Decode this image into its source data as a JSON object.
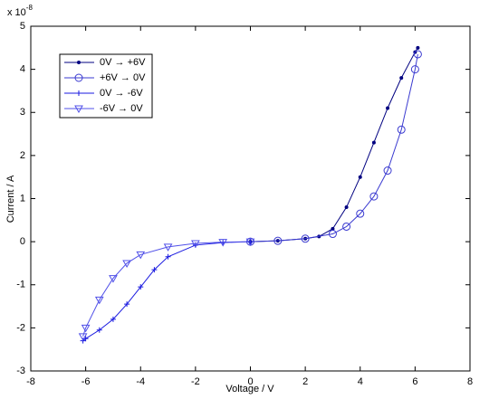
{
  "chart_data": {
    "type": "line",
    "xlabel": "Voltage / V",
    "ylabel": "Current / A",
    "y_multiplier": {
      "text": "x 10",
      "exponent": "-8"
    },
    "xlim": [
      -8,
      8
    ],
    "xticks": [
      -8,
      -6,
      -4,
      -2,
      0,
      2,
      4,
      6,
      8
    ],
    "ylim": [
      -3,
      5
    ],
    "yticks": [
      -3,
      -2,
      -1,
      0,
      1,
      2,
      3,
      4,
      5
    ],
    "grid": false,
    "legend": "upper left",
    "series": [
      {
        "name": "0V → +6V",
        "color": "#000080",
        "marker": "dot",
        "x": [
          0,
          1,
          2,
          2.5,
          3,
          3.5,
          4,
          4.5,
          5,
          5.5,
          6,
          6.1
        ],
        "values": [
          0,
          0.02,
          0.07,
          0.12,
          0.3,
          0.8,
          1.5,
          2.3,
          3.1,
          3.8,
          4.4,
          4.5
        ]
      },
      {
        "name": "+6V → 0V",
        "color": "#3a3ad0",
        "marker": "circle",
        "x": [
          6.1,
          6,
          5.5,
          5,
          4.5,
          4,
          3.5,
          3,
          2,
          1,
          0
        ],
        "values": [
          4.35,
          4.0,
          2.6,
          1.65,
          1.05,
          0.65,
          0.35,
          0.18,
          0.07,
          0.02,
          0
        ]
      },
      {
        "name": "0V → -6V",
        "color": "#1a1ae0",
        "marker": "plus",
        "x": [
          0,
          -1,
          -2,
          -3,
          -3.5,
          -4,
          -4.5,
          -5,
          -5.5,
          -6,
          -6.1
        ],
        "values": [
          0,
          -0.02,
          -0.08,
          -0.35,
          -0.65,
          -1.05,
          -1.45,
          -1.8,
          -2.05,
          -2.25,
          -2.3
        ]
      },
      {
        "name": "-6V → 0V",
        "color": "#5050e8",
        "marker": "triangle",
        "x": [
          -6.1,
          -6,
          -5.5,
          -5,
          -4.5,
          -4,
          -3,
          -2,
          -1,
          0
        ],
        "values": [
          -2.2,
          -2.0,
          -1.35,
          -0.85,
          -0.5,
          -0.3,
          -0.12,
          -0.04,
          -0.01,
          0
        ]
      }
    ]
  }
}
